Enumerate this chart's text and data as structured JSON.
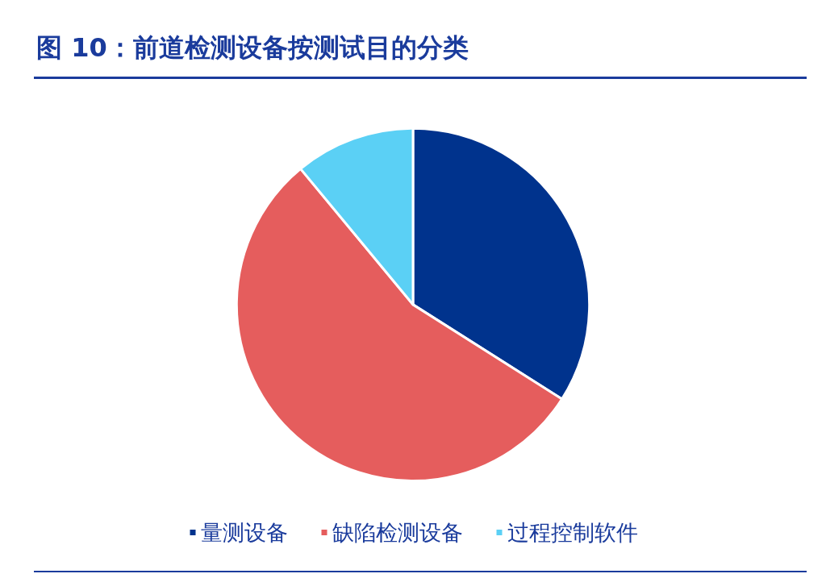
{
  "chart_data": {
    "type": "pie",
    "title": "图 10：前道检测设备按测试目的分类",
    "categories": [
      "量测设备",
      "缺陷检测设备",
      "过程控制软件"
    ],
    "values": [
      34,
      55,
      11
    ],
    "colors": [
      "#00338d",
      "#e55d5d",
      "#5bd0f5"
    ],
    "legend": "bottom"
  }
}
